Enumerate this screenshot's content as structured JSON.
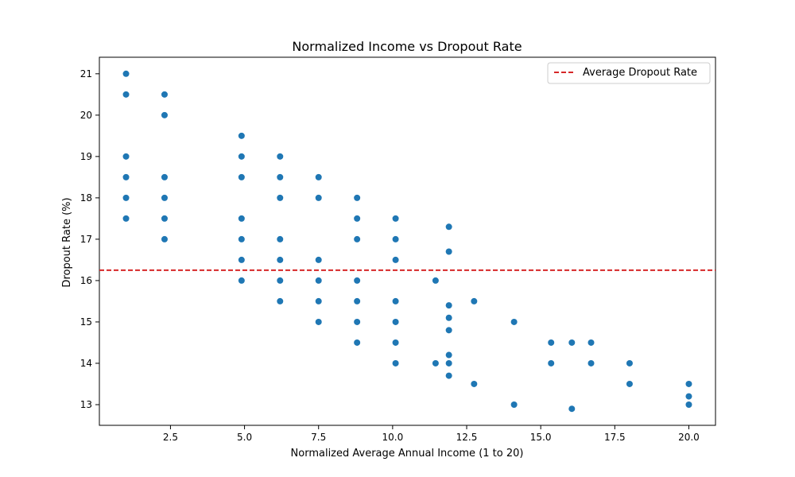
{
  "chart_data": {
    "type": "scatter",
    "title": "Normalized Income vs Dropout Rate",
    "xlabel": "Normalized Average Annual Income (1 to 20)",
    "ylabel": "Dropout Rate (%)",
    "xlim": [
      0.1,
      20.9
    ],
    "ylim": [
      12.5,
      21.4
    ],
    "xticks": [
      2.5,
      5.0,
      7.5,
      10.0,
      12.5,
      15.0,
      17.5,
      20.0
    ],
    "xtick_labels": [
      "2.5",
      "5.0",
      "7.5",
      "10.0",
      "12.5",
      "15.0",
      "17.5",
      "20.0"
    ],
    "yticks": [
      13,
      14,
      15,
      16,
      17,
      18,
      19,
      20,
      21
    ],
    "ytick_labels": [
      "13",
      "14",
      "15",
      "16",
      "17",
      "18",
      "19",
      "20",
      "21"
    ],
    "grid": false,
    "legend": {
      "placement": "top-right",
      "entries": [
        {
          "label": "Average Dropout Rate",
          "style": "dashed-line",
          "color": "#d62728"
        }
      ]
    },
    "reference_line": {
      "label": "Average Dropout Rate",
      "y": 16.25,
      "color": "#d62728",
      "style": "dashed"
    },
    "point_color": "#1f77b4",
    "points": [
      {
        "x": 1.0,
        "y": 21.0
      },
      {
        "x": 1.0,
        "y": 20.5
      },
      {
        "x": 1.0,
        "y": 19.0
      },
      {
        "x": 1.0,
        "y": 18.5
      },
      {
        "x": 1.0,
        "y": 18.0
      },
      {
        "x": 1.0,
        "y": 17.5
      },
      {
        "x": 2.3,
        "y": 20.5
      },
      {
        "x": 2.3,
        "y": 20.0
      },
      {
        "x": 2.3,
        "y": 18.5
      },
      {
        "x": 2.3,
        "y": 18.0
      },
      {
        "x": 2.3,
        "y": 17.5
      },
      {
        "x": 2.3,
        "y": 17.0
      },
      {
        "x": 4.9,
        "y": 19.5
      },
      {
        "x": 4.9,
        "y": 19.0
      },
      {
        "x": 4.9,
        "y": 18.5
      },
      {
        "x": 4.9,
        "y": 17.5
      },
      {
        "x": 4.9,
        "y": 17.0
      },
      {
        "x": 4.9,
        "y": 16.5
      },
      {
        "x": 4.9,
        "y": 16.0
      },
      {
        "x": 6.2,
        "y": 19.0
      },
      {
        "x": 6.2,
        "y": 18.5
      },
      {
        "x": 6.2,
        "y": 18.0
      },
      {
        "x": 6.2,
        "y": 17.0
      },
      {
        "x": 6.2,
        "y": 16.5
      },
      {
        "x": 6.2,
        "y": 16.0
      },
      {
        "x": 6.2,
        "y": 15.5
      },
      {
        "x": 7.5,
        "y": 18.5
      },
      {
        "x": 7.5,
        "y": 18.0
      },
      {
        "x": 7.5,
        "y": 16.5
      },
      {
        "x": 7.5,
        "y": 16.0
      },
      {
        "x": 7.5,
        "y": 15.5
      },
      {
        "x": 7.5,
        "y": 15.0
      },
      {
        "x": 8.8,
        "y": 18.0
      },
      {
        "x": 8.8,
        "y": 17.5
      },
      {
        "x": 8.8,
        "y": 17.0
      },
      {
        "x": 8.8,
        "y": 16.0
      },
      {
        "x": 8.8,
        "y": 15.5
      },
      {
        "x": 8.8,
        "y": 15.0
      },
      {
        "x": 8.8,
        "y": 14.5
      },
      {
        "x": 10.1,
        "y": 17.5
      },
      {
        "x": 10.1,
        "y": 17.0
      },
      {
        "x": 10.1,
        "y": 16.5
      },
      {
        "x": 10.1,
        "y": 15.5
      },
      {
        "x": 10.1,
        "y": 15.0
      },
      {
        "x": 10.1,
        "y": 14.5
      },
      {
        "x": 10.1,
        "y": 14.0
      },
      {
        "x": 11.45,
        "y": 16.0
      },
      {
        "x": 11.45,
        "y": 14.0
      },
      {
        "x": 11.9,
        "y": 17.3
      },
      {
        "x": 11.9,
        "y": 16.7
      },
      {
        "x": 11.9,
        "y": 15.4
      },
      {
        "x": 11.9,
        "y": 15.1
      },
      {
        "x": 11.9,
        "y": 14.8
      },
      {
        "x": 11.9,
        "y": 14.2
      },
      {
        "x": 11.9,
        "y": 14.0
      },
      {
        "x": 11.9,
        "y": 13.7
      },
      {
        "x": 12.75,
        "y": 15.5
      },
      {
        "x": 12.75,
        "y": 13.5
      },
      {
        "x": 14.1,
        "y": 15.0
      },
      {
        "x": 14.1,
        "y": 13.0
      },
      {
        "x": 15.35,
        "y": 14.5
      },
      {
        "x": 15.35,
        "y": 14.0
      },
      {
        "x": 16.05,
        "y": 14.5
      },
      {
        "x": 16.05,
        "y": 12.9
      },
      {
        "x": 16.7,
        "y": 14.5
      },
      {
        "x": 16.7,
        "y": 14.0
      },
      {
        "x": 18.0,
        "y": 14.0
      },
      {
        "x": 18.0,
        "y": 13.5
      },
      {
        "x": 20.0,
        "y": 13.5
      },
      {
        "x": 20.0,
        "y": 13.2
      },
      {
        "x": 20.0,
        "y": 13.0
      }
    ]
  }
}
